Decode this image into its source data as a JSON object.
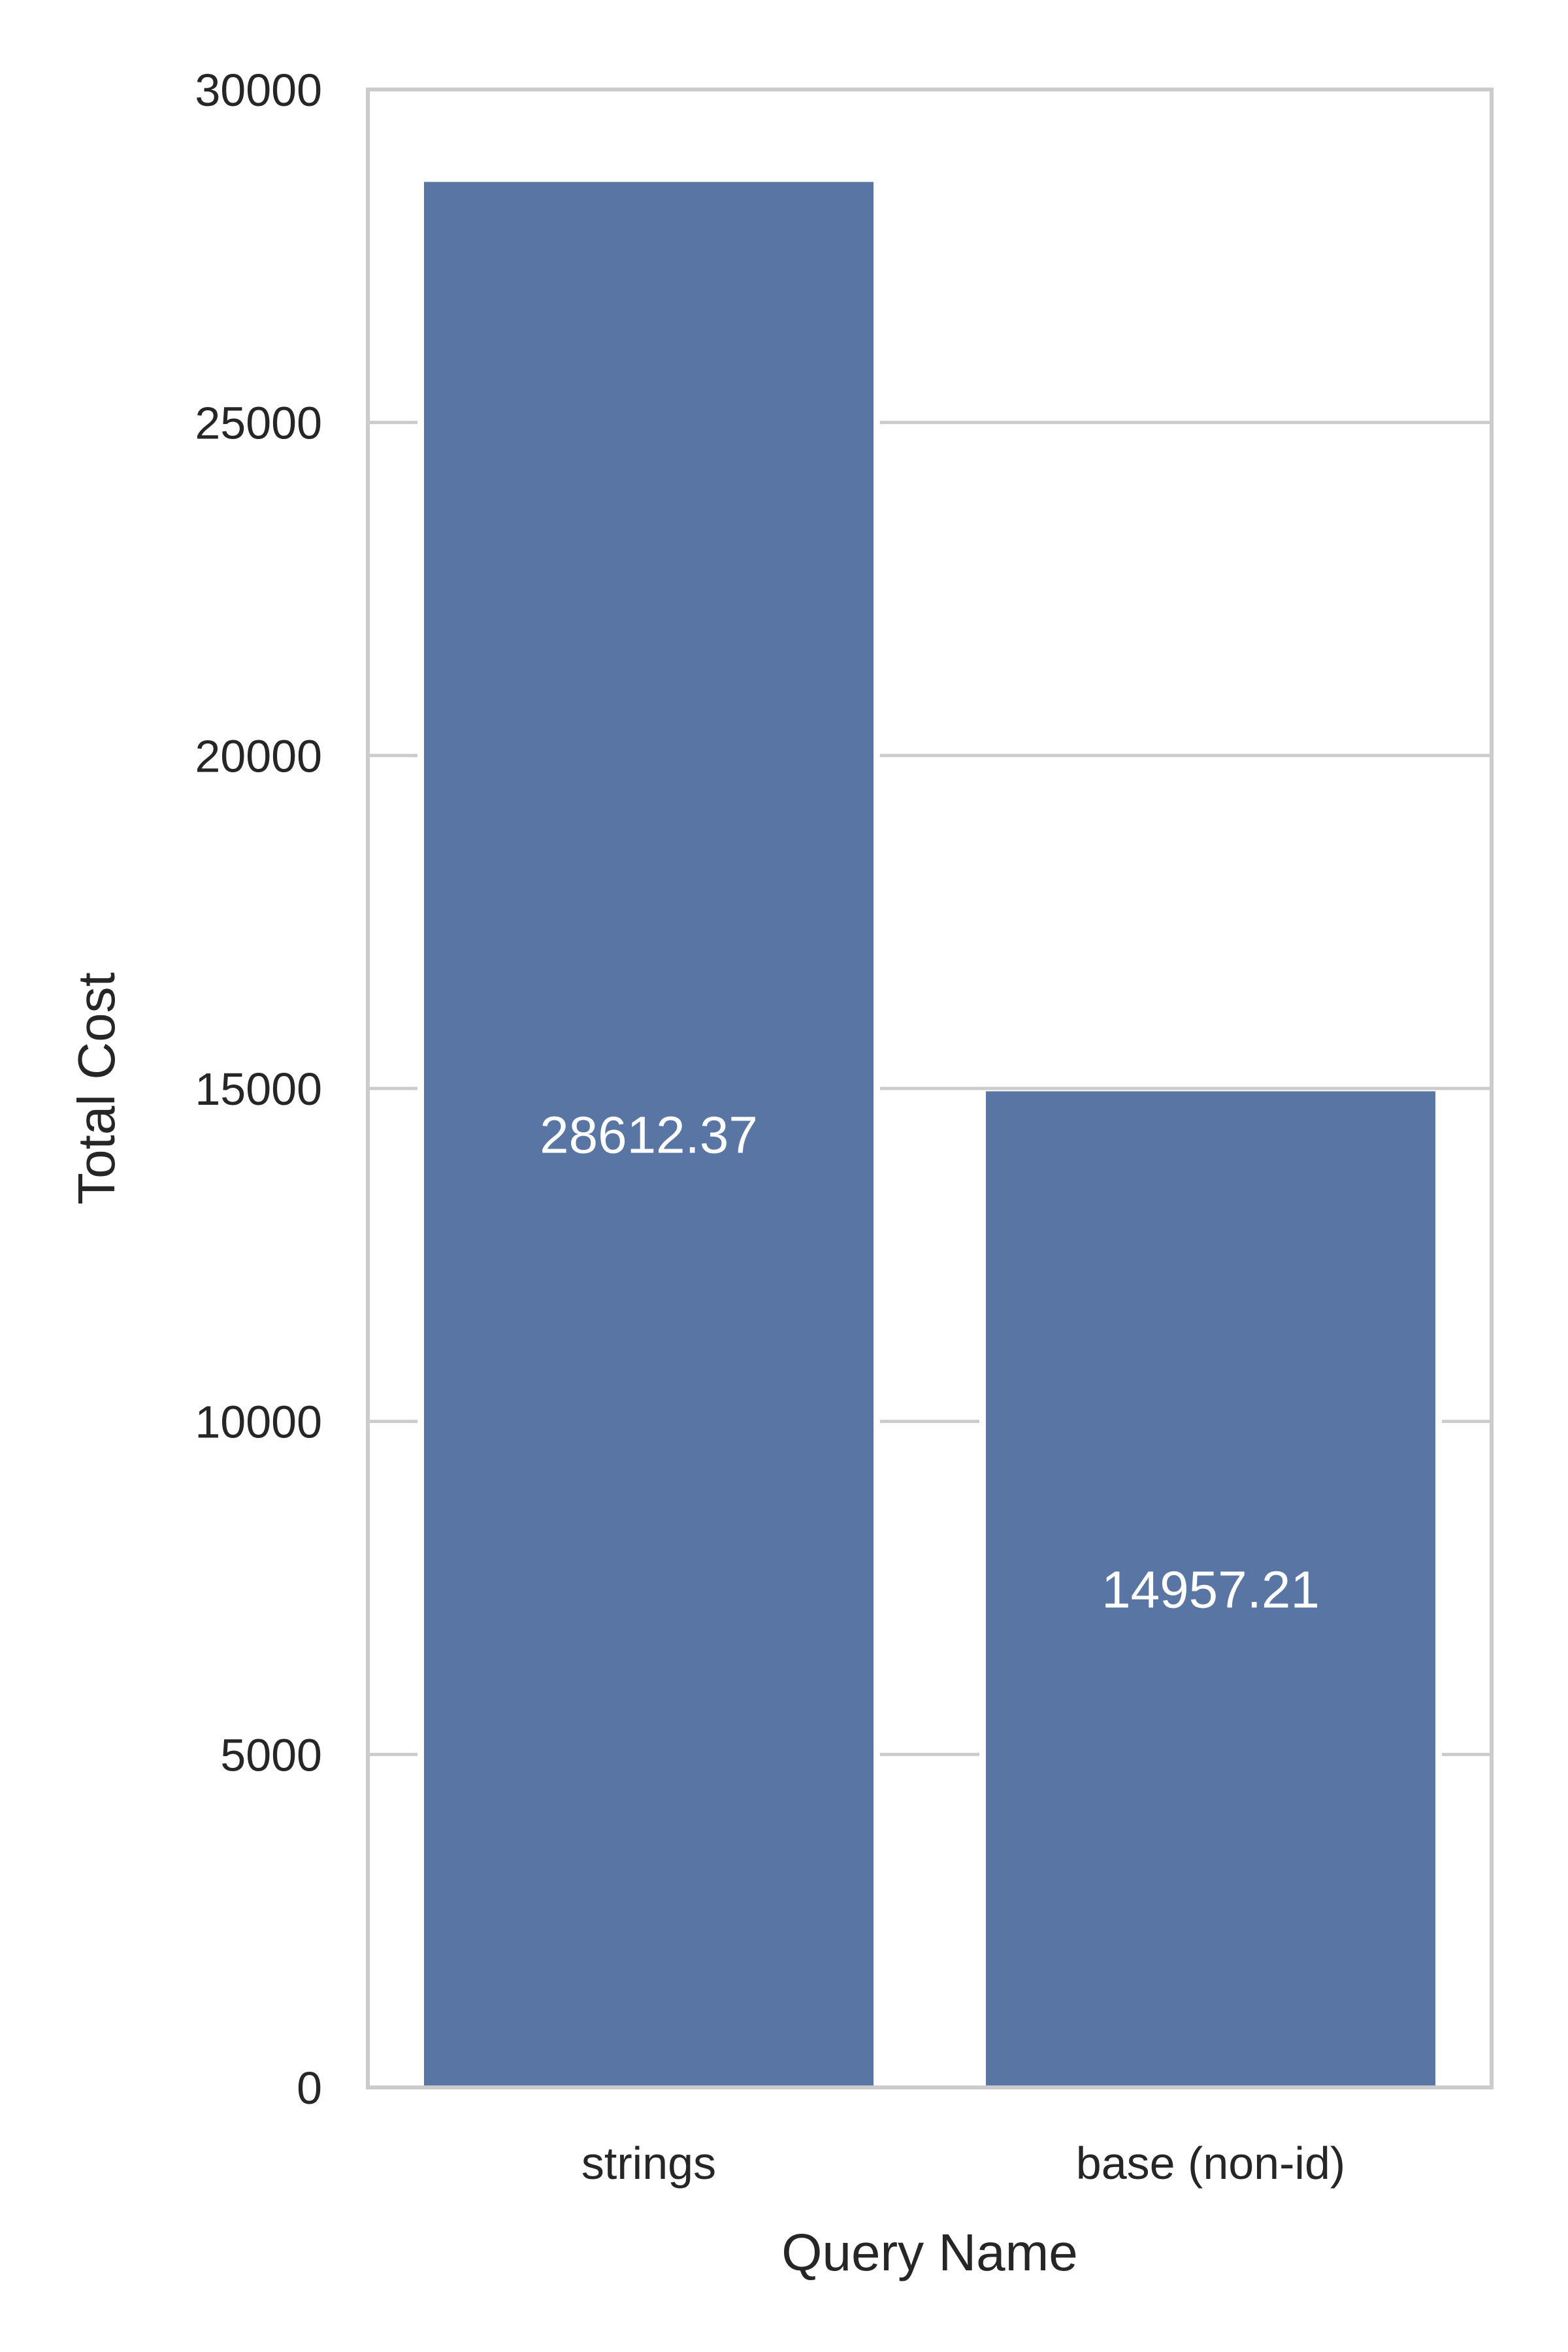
{
  "chart_data": {
    "type": "bar",
    "categories": [
      "strings",
      "base (non-id)"
    ],
    "values": [
      28612.37,
      14957.21
    ],
    "data_labels": [
      "28612.37",
      "14957.21"
    ],
    "xlabel": "Query Name",
    "ylabel": "Total Cost",
    "ylim": [
      0,
      30000
    ],
    "yticks": [
      0,
      5000,
      10000,
      15000,
      20000,
      25000,
      30000
    ],
    "ytick_labels": [
      "0",
      "5000",
      "10000",
      "15000",
      "20000",
      "25000",
      "30000"
    ],
    "grid": "horizontal",
    "bar_color": "#5975a4",
    "grid_color": "#cccccc",
    "text_color": "#262626"
  }
}
